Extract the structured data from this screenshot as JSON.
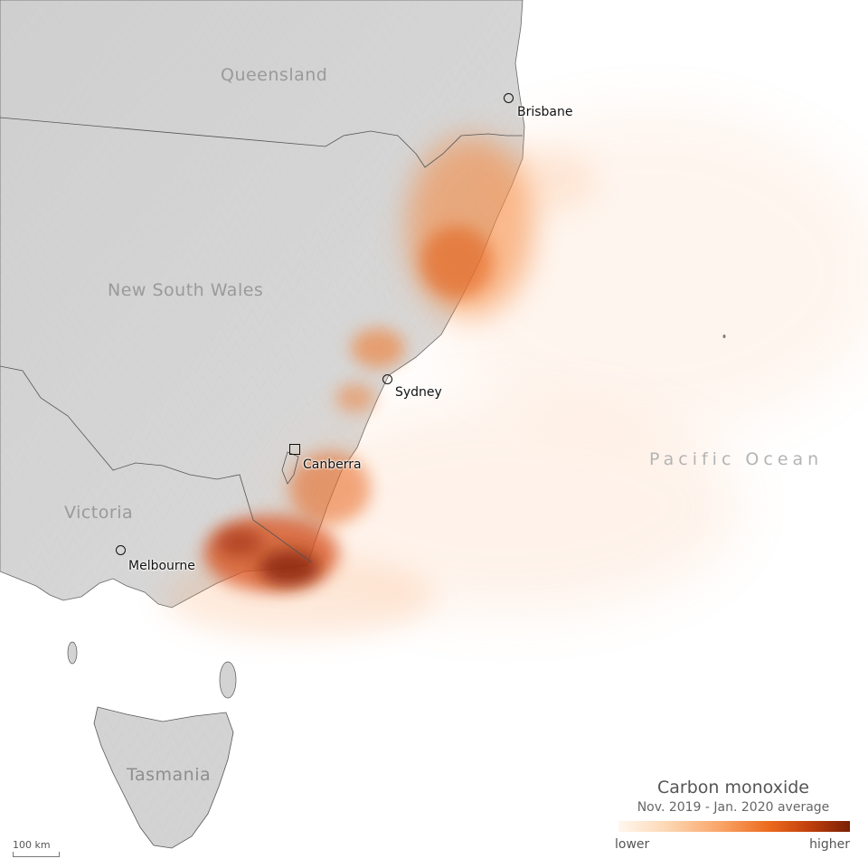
{
  "map": {
    "regions": [
      {
        "id": "queensland",
        "label": "Queensland"
      },
      {
        "id": "new-south-wales",
        "label": "New South Wales"
      },
      {
        "id": "victoria",
        "label": "Victoria"
      },
      {
        "id": "tasmania",
        "label": "Tasmania"
      }
    ],
    "ocean_label": "Pacific Ocean",
    "cities": [
      {
        "id": "brisbane",
        "label": "Brisbane",
        "marker": "circle"
      },
      {
        "id": "sydney",
        "label": "Sydney",
        "marker": "circle"
      },
      {
        "id": "canberra",
        "label": "Canberra",
        "marker": "square"
      },
      {
        "id": "melbourne",
        "label": "Melbourne",
        "marker": "circle"
      }
    ]
  },
  "legend": {
    "title": "Carbon monoxide",
    "subtitle": "Nov. 2019 - Jan. 2020 average",
    "low_label": "lower",
    "high_label": "higher",
    "colors": [
      "#fff7ee",
      "#fdd9b6",
      "#f9a264",
      "#ec6a1e",
      "#c2410c",
      "#7a1f05"
    ]
  },
  "scale_bar": {
    "label": "100 km"
  }
}
